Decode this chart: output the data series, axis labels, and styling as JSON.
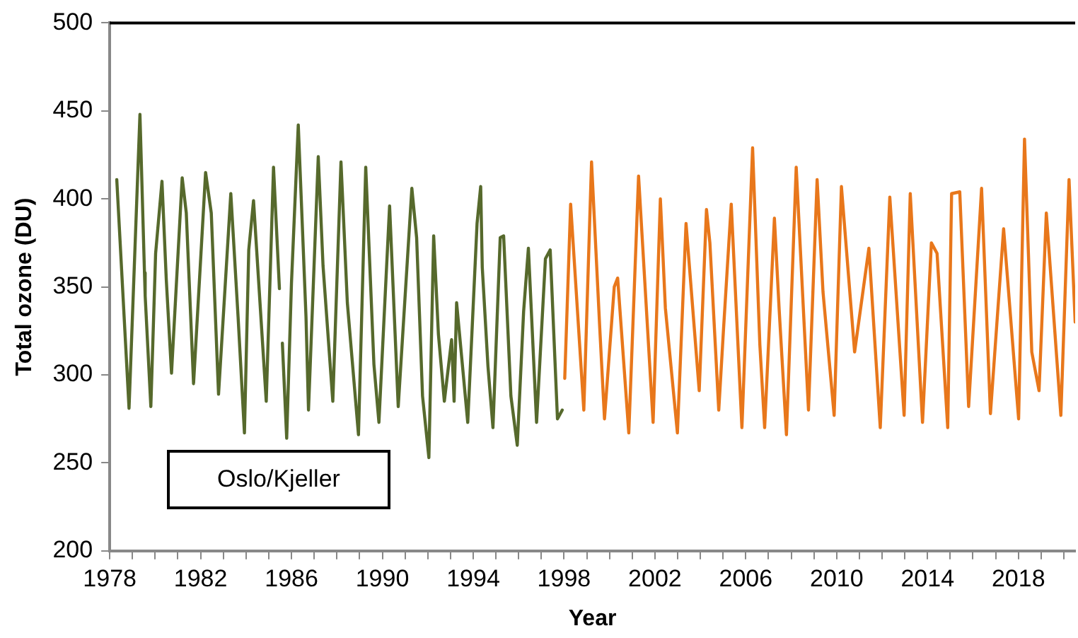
{
  "chart_data": {
    "type": "line",
    "xlabel": "Year",
    "ylabel": "Total ozone (DU)",
    "annotations": [
      "Oslo/Kjeller"
    ],
    "grid": false,
    "legend": false,
    "marker": "none",
    "line_style": "solid",
    "xlim": [
      1978,
      2020.5
    ],
    "ylim": [
      200,
      500
    ],
    "yticks": [
      200,
      250,
      300,
      350,
      400,
      450,
      500
    ],
    "xticks": [
      1978,
      {
        "value": 1979,
        "label": null
      },
      {
        "value": 1980,
        "label": null
      },
      {
        "value": 1981,
        "label": null
      },
      1982,
      {
        "value": 1983,
        "label": null
      },
      {
        "value": 1984,
        "label": null
      },
      {
        "value": 1985,
        "label": null
      },
      1986,
      {
        "value": 1987,
        "label": null
      },
      {
        "value": 1988,
        "label": null
      },
      {
        "value": 1989,
        "label": null
      },
      1990,
      {
        "value": 1991,
        "label": null
      },
      {
        "value": 1992,
        "label": null
      },
      {
        "value": 1993,
        "label": null
      },
      1994,
      {
        "value": 1995,
        "label": null
      },
      {
        "value": 1996,
        "label": null
      },
      {
        "value": 1997,
        "label": null
      },
      1998,
      {
        "value": 1999,
        "label": null
      },
      {
        "value": 2000,
        "label": null
      },
      {
        "value": 2001,
        "label": null
      },
      2002,
      {
        "value": 2003,
        "label": null
      },
      {
        "value": 2004,
        "label": null
      },
      {
        "value": 2005,
        "label": null
      },
      2006,
      {
        "value": 2007,
        "label": null
      },
      {
        "value": 2008,
        "label": null
      },
      {
        "value": 2009,
        "label": null
      },
      2010,
      {
        "value": 2011,
        "label": null
      },
      {
        "value": 2012,
        "label": null
      },
      {
        "value": 2013,
        "label": null
      },
      2014,
      {
        "value": 2015,
        "label": null
      },
      {
        "value": 2016,
        "label": null
      },
      {
        "value": 2017,
        "label": null
      },
      2018,
      {
        "value": 2019,
        "label": null
      },
      {
        "value": 2020,
        "label": null
      }
    ],
    "series": [
      {
        "color": "#56692c",
        "x": [
          1978.31,
          1978.85,
          1979.33,
          1979.53,
          1979.56,
          1979.81,
          1980.02,
          1980.3,
          1980.49,
          1980.72,
          1981.19,
          1981.37,
          1981.69,
          1982.22,
          1982.47,
          1982.79,
          1983.33,
          1983.65,
          1983.93,
          1984.12,
          1984.33,
          1984.89,
          1985.21,
          1985.47,
          1985.52,
          1985.6,
          1985.79,
          1986.0,
          1986.3,
          1986.64,
          1986.75,
          1987.18,
          1987.39,
          1987.82,
          1988.18,
          1988.46,
          1988.95,
          1989.27,
          1989.63,
          1989.85,
          1990.32,
          1990.7,
          1991.3,
          1991.51,
          1991.77,
          1992.05,
          1992.26,
          1992.47,
          1992.73,
          1993.05,
          1993.16,
          1993.27,
          1993.76,
          1994.17,
          1994.33,
          1994.4,
          1994.65,
          1994.87,
          1995.19,
          1995.34,
          1995.66,
          1995.94,
          1996.22,
          1996.43,
          1996.79,
          1997.18,
          1997.39,
          1997.71,
          1997.92
        ],
        "values": [
          411,
          281,
          448,
          358,
          345,
          282,
          369,
          410,
          354,
          301,
          412,
          392,
          295,
          415,
          392,
          289,
          403,
          333,
          267,
          371,
          399,
          285,
          418,
          349,
          null,
          318,
          264,
          352,
          442,
          333,
          280,
          424,
          362,
          285,
          421,
          341,
          266,
          418,
          306,
          273,
          396,
          282,
          406,
          378,
          288,
          253,
          379,
          323,
          285,
          320,
          285,
          341,
          273,
          386,
          407,
          361,
          305,
          270,
          378,
          379,
          288,
          260,
          336,
          372,
          273,
          366,
          371,
          275,
          280
        ]
      },
      {
        "color": "#e8771b",
        "x": [
          1998.03,
          1998.29,
          1998.87,
          1999.21,
          1999.57,
          1999.78,
          2000.21,
          2000.36,
          2000.85,
          2001.28,
          2001.92,
          2002.24,
          2002.46,
          2002.99,
          2003.37,
          2003.95,
          2004.27,
          2004.42,
          2004.81,
          2005.02,
          2005.36,
          2005.83,
          2006.3,
          2006.62,
          2006.83,
          2007.26,
          2007.47,
          2007.79,
          2008.22,
          2008.76,
          2009.14,
          2009.4,
          2009.89,
          2010.21,
          2010.79,
          2011.42,
          2011.92,
          2012.34,
          2012.97,
          2013.24,
          2013.78,
          2014.17,
          2014.42,
          2014.89,
          2015.06,
          2015.42,
          2015.81,
          2016.38,
          2016.77,
          2017.35,
          2018.01,
          2018.27,
          2018.59,
          2018.91,
          2019.23,
          2019.87,
          2020.23,
          2020.5
        ],
        "values": [
          298,
          397,
          280,
          421,
          327,
          275,
          350,
          355,
          267,
          413,
          273,
          400,
          338,
          267,
          386,
          291,
          394,
          375,
          280,
          326,
          397,
          270,
          429,
          317,
          270,
          389,
          337,
          266,
          418,
          280,
          411,
          347,
          277,
          407,
          313,
          372,
          270,
          401,
          277,
          403,
          273,
          375,
          369,
          270,
          403,
          404,
          282,
          406,
          278,
          383,
          275,
          434,
          313,
          291,
          392,
          277,
          411,
          330
        ]
      }
    ]
  }
}
